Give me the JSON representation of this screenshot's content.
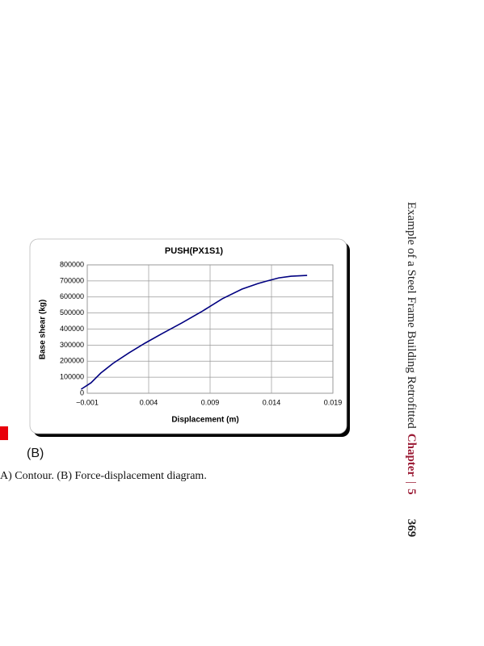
{
  "header": {
    "running_title": "Example of a Steel Frame Building Retrofitted",
    "chapter_label": "Chapter",
    "separator": "|",
    "chapter_number": "5",
    "page_number": "369"
  },
  "figure": {
    "panel_label": "(B)",
    "caption": "A) Contour. (B) Force-displacement diagram."
  },
  "chart_data": {
    "type": "line",
    "title": "PUSH(PX1S1)",
    "x_label": "Displacement (m)",
    "y_label": "Base shear (kg)",
    "x": [
      -0.0015,
      -0.0007,
      0.0001,
      0.0011,
      0.0024,
      0.0037,
      0.0051,
      0.0067,
      0.0083,
      0.01,
      0.0116,
      0.0129,
      0.0136,
      0.0146,
      0.0156,
      0.0169
    ],
    "values": [
      25000,
      65000,
      126000,
      186000,
      252000,
      312000,
      372000,
      438000,
      508000,
      589000,
      649000,
      684000,
      699000,
      719000,
      729000,
      734000
    ],
    "color": "#000080",
    "xlim": [
      -0.001,
      0.019
    ],
    "xticks": [
      {
        "value": -0.001,
        "label": "−0.001"
      },
      0.004,
      0.009,
      0.014,
      0.019
    ],
    "ylim": [
      0,
      800000
    ],
    "yticks": [
      0,
      100000,
      200000,
      300000,
      400000,
      500000,
      600000,
      700000,
      800000
    ],
    "grid": true
  }
}
